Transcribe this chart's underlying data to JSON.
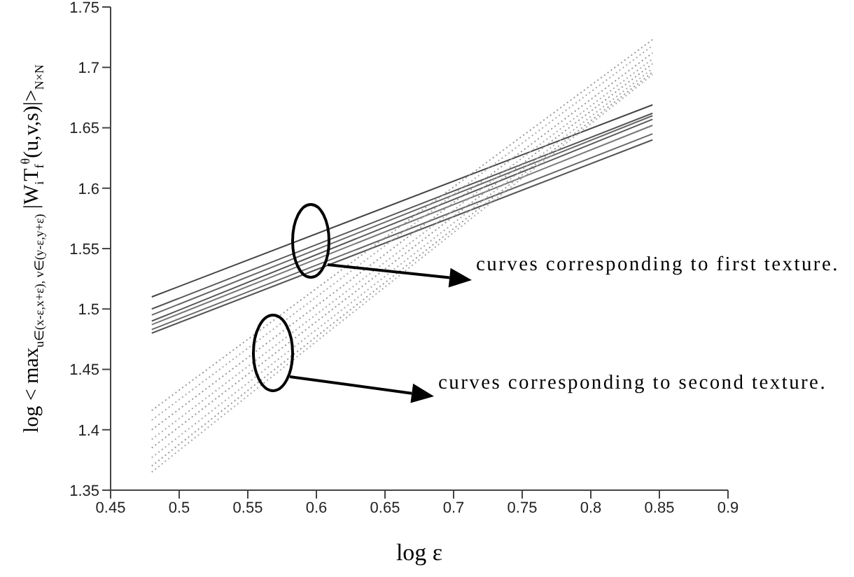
{
  "chart_data": {
    "type": "line",
    "xlabel": "log ε",
    "ylabel": "log < max$_{u∈(x-ε,x+ε), v∈(y-ε,y+ε)}$ |W$_{i}$T$_{f}$$^{θ}$(u,v,s)|>$_{N×N}$",
    "x": [
      0.48,
      0.845
    ],
    "xlim": [
      0.45,
      0.9
    ],
    "xticks": [
      0.45,
      0.5,
      0.55,
      0.6,
      0.65,
      0.7,
      0.75,
      0.8,
      0.85,
      0.9
    ],
    "ylim": [
      1.35,
      1.75
    ],
    "yticks": [
      1.35,
      1.4,
      1.45,
      1.5,
      1.55,
      1.6,
      1.65,
      1.7,
      1.75
    ],
    "grid": false,
    "marker": "none",
    "series": [
      {
        "color": "#444444",
        "line_style": "solid",
        "values": [
          1.51,
          1.669
        ]
      },
      {
        "color": "#555555",
        "line_style": "solid",
        "values": [
          1.5,
          1.662
        ]
      },
      {
        "color": "#666666",
        "line_style": "solid",
        "values": [
          1.495,
          1.66
        ]
      },
      {
        "color": "#555555",
        "line_style": "solid",
        "values": [
          1.49,
          1.657
        ]
      },
      {
        "color": "#777777",
        "line_style": "solid",
        "values": [
          1.487,
          1.652
        ]
      },
      {
        "color": "#666666",
        "line_style": "solid",
        "values": [
          1.483,
          1.645
        ]
      },
      {
        "color": "#555555",
        "line_style": "solid",
        "values": [
          1.48,
          1.64
        ]
      },
      {
        "color": "#999999",
        "line_style": "dotted",
        "values": [
          1.416,
          1.723
        ]
      },
      {
        "color": "#aaaaaa",
        "line_style": "dotted",
        "values": [
          1.408,
          1.718
        ]
      },
      {
        "color": "#999999",
        "line_style": "dotted",
        "values": [
          1.4,
          1.712
        ]
      },
      {
        "color": "#aaaaaa",
        "line_style": "dotted",
        "values": [
          1.392,
          1.707
        ]
      },
      {
        "color": "#999999",
        "line_style": "dotted",
        "values": [
          1.385,
          1.703
        ]
      },
      {
        "color": "#aaaaaa",
        "line_style": "dotted",
        "values": [
          1.377,
          1.699
        ]
      },
      {
        "color": "#999999",
        "line_style": "dotted",
        "values": [
          1.37,
          1.696
        ]
      },
      {
        "color": "#aaaaaa",
        "line_style": "dotted",
        "values": [
          1.365,
          1.694
        ]
      }
    ],
    "annotations": [
      "curves corresponding to first texture.",
      "curves corresponding to second texture."
    ]
  }
}
